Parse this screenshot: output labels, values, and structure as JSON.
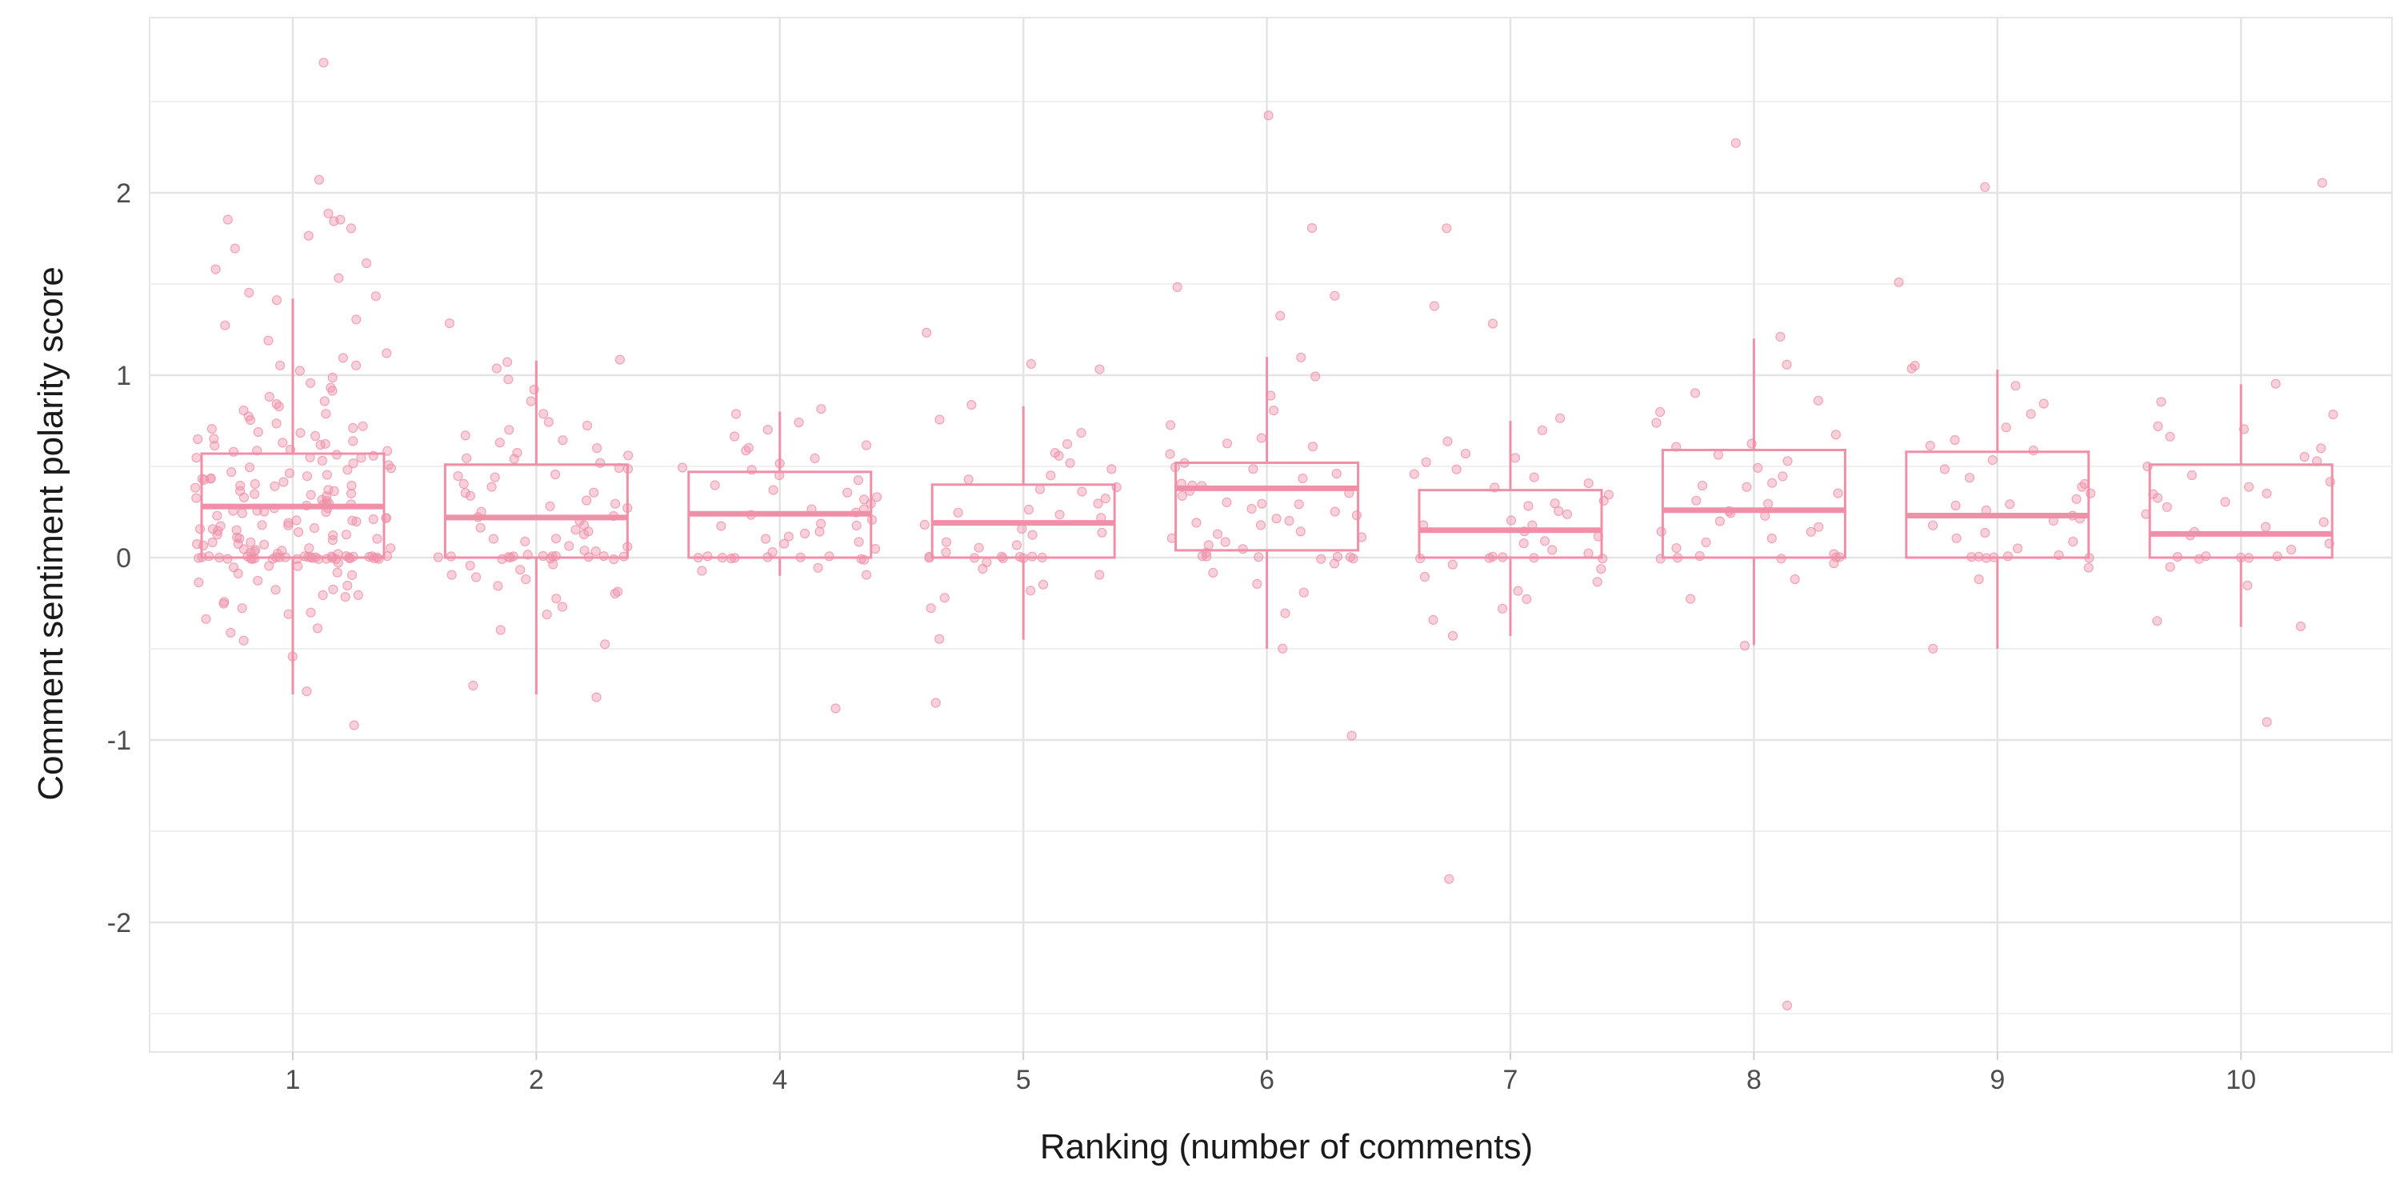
{
  "chart_data": {
    "type": "boxplot",
    "xlabel": "Ranking (number of comments)",
    "ylabel": "Comment sentiment polarity score",
    "categories": [
      "1",
      "2",
      "4",
      "5",
      "6",
      "7",
      "8",
      "9",
      "10"
    ],
    "ylim": [
      -2.7,
      2.7
    ],
    "yticks": [
      -2,
      -1,
      0,
      1,
      2
    ],
    "grid": true,
    "color": "#ef8fa8",
    "boxes": [
      {
        "category": "1",
        "whisker_low": -0.75,
        "q1": 0.0,
        "median": 0.28,
        "q3": 0.57,
        "whisker_high": 1.42
      },
      {
        "category": "2",
        "whisker_low": -0.75,
        "q1": 0.0,
        "median": 0.22,
        "q3": 0.51,
        "whisker_high": 1.08
      },
      {
        "category": "4",
        "whisker_low": -0.1,
        "q1": 0.0,
        "median": 0.24,
        "q3": 0.47,
        "whisker_high": 0.8
      },
      {
        "category": "5",
        "whisker_low": -0.45,
        "q1": 0.0,
        "median": 0.19,
        "q3": 0.4,
        "whisker_high": 0.83
      },
      {
        "category": "6",
        "whisker_low": -0.5,
        "q1": 0.04,
        "median": 0.38,
        "q3": 0.52,
        "whisker_high": 1.1
      },
      {
        "category": "7",
        "whisker_low": -0.43,
        "q1": 0.0,
        "median": 0.15,
        "q3": 0.37,
        "whisker_high": 0.75
      },
      {
        "category": "8",
        "whisker_low": -0.48,
        "q1": 0.0,
        "median": 0.26,
        "q3": 0.59,
        "whisker_high": 1.2
      },
      {
        "category": "9",
        "whisker_low": -0.5,
        "q1": 0.0,
        "median": 0.23,
        "q3": 0.58,
        "whisker_high": 1.03
      },
      {
        "category": "10",
        "whisker_low": -0.38,
        "q1": 0.0,
        "median": 0.13,
        "q3": 0.51,
        "whisker_high": 0.95
      }
    ],
    "points": {
      "1": [
        2.71,
        2.08,
        1.89,
        1.86,
        1.85,
        1.85,
        1.8,
        1.76,
        1.7,
        1.62,
        1.58,
        1.53,
        1.45,
        1.44,
        1.41,
        1.3,
        1.27,
        1.19,
        1.12,
        1.09,
        1.06,
        1.05,
        1.03,
        0.98,
        0.95,
        0.93,
        0.91,
        0.88,
        0.85,
        0.82,
        0.8,
        0.78,
        0.75,
        0.73,
        0.71,
        0.69,
        0.67,
        0.65,
        0.63,
        0.62,
        0.6,
        0.58,
        0.56,
        0.55,
        0.53,
        0.52,
        0.5,
        0.49,
        0.47,
        0.46,
        0.45,
        0.44,
        0.43,
        0.42,
        0.41,
        0.4,
        0.39,
        0.38,
        0.37,
        0.36,
        0.35,
        0.34,
        0.33,
        0.32,
        0.31,
        0.3,
        0.29,
        0.28,
        0.27,
        0.26,
        0.25,
        0.24,
        0.23,
        0.22,
        0.21,
        0.2,
        0.19,
        0.18,
        0.17,
        0.16,
        0.15,
        0.14,
        0.13,
        0.12,
        0.11,
        0.1,
        0.09,
        0.08,
        0.07,
        0.06,
        0.05,
        0.04,
        0.03,
        0.02,
        0.01,
        0.0,
        0.0,
        0.0,
        0.0,
        0.0,
        0.0,
        0.0,
        0.0,
        0.0,
        0.0,
        0.0,
        0.0,
        0.0,
        0.0,
        0.0,
        0.0,
        0.0,
        0.0,
        0.0,
        0.0,
        0.0,
        0.0,
        0.0,
        0.0,
        0.0,
        0.0,
        -0.02,
        -0.04,
        -0.06,
        -0.08,
        -0.1,
        -0.12,
        -0.15,
        -0.18,
        -0.2,
        -0.22,
        -0.25,
        -0.28,
        -0.31,
        -0.34,
        -0.38,
        -0.42,
        -0.45,
        -0.54,
        -0.74,
        -0.92,
        0.62,
        0.58,
        0.55,
        0.48,
        0.44,
        0.4,
        0.36,
        0.3,
        0.27,
        0.22,
        0.18,
        0.14,
        0.1,
        0.08,
        0.06,
        0.72,
        0.68,
        0.66,
        0.64,
        0.59,
        0.57,
        0.51,
        0.33,
        0.29,
        0.25,
        0.21,
        0.16,
        0.12,
        0.05,
        0.03,
        0.0,
        0.0,
        0.0,
        -0.05,
        -0.09,
        -0.13,
        -0.17,
        -0.21,
        -0.26,
        -0.3,
        0.85,
        0.77,
        0.7,
        0.61,
        0.54,
        0.47,
        0.43,
        0.37,
        0.32,
        0.26,
        0.2,
        0.15,
        0.11,
        0.07,
        0.04,
        0.02,
        0.0,
        0.0,
        0.0,
        0.0
      ],
      "2": [
        1.28,
        1.09,
        1.08,
        1.03,
        0.98,
        0.92,
        0.86,
        0.78,
        0.75,
        0.73,
        0.7,
        0.67,
        0.63,
        0.6,
        0.58,
        0.56,
        0.54,
        0.52,
        0.5,
        0.48,
        0.46,
        0.44,
        0.41,
        0.38,
        0.36,
        0.33,
        0.31,
        0.29,
        0.27,
        0.25,
        0.22,
        0.2,
        0.18,
        0.16,
        0.14,
        0.12,
        0.1,
        0.08,
        0.06,
        0.04,
        0.02,
        0.0,
        0.0,
        0.0,
        0.0,
        0.0,
        0.0,
        0.0,
        0.0,
        0.0,
        0.0,
        0.0,
        0.0,
        -0.03,
        -0.06,
        -0.09,
        -0.12,
        -0.15,
        -0.19,
        -0.23,
        -0.27,
        -0.32,
        -0.4,
        -0.48,
        -0.7,
        -0.76,
        0.65,
        0.55,
        0.45,
        0.35,
        0.28,
        0.23,
        0.17,
        0.11,
        0.07,
        0.03,
        0.0,
        0.0,
        -0.05,
        -0.11,
        -0.2
      ],
      "4": [
        0.81,
        0.79,
        0.74,
        0.7,
        0.66,
        0.62,
        0.58,
        0.55,
        0.52,
        0.49,
        0.46,
        0.43,
        0.4,
        0.37,
        0.34,
        0.31,
        0.29,
        0.27,
        0.25,
        0.23,
        0.21,
        0.19,
        0.17,
        0.15,
        0.13,
        0.11,
        0.09,
        0.07,
        0.05,
        0.03,
        0.01,
        0.0,
        0.0,
        0.0,
        0.0,
        0.0,
        0.0,
        0.0,
        0.0,
        -0.02,
        -0.05,
        -0.07,
        -0.09,
        -0.83,
        0.6,
        0.48,
        0.35,
        0.26,
        0.18,
        0.12
      ],
      "5": [
        1.07,
        1.03,
        0.83,
        0.75,
        0.68,
        0.62,
        0.57,
        0.52,
        0.48,
        0.45,
        0.42,
        0.39,
        0.36,
        0.33,
        0.3,
        0.27,
        0.24,
        0.21,
        0.18,
        0.15,
        0.12,
        0.09,
        0.06,
        0.03,
        0.0,
        0.0,
        0.0,
        0.0,
        0.0,
        0.0,
        0.0,
        0.0,
        -0.03,
        -0.06,
        -0.1,
        -0.14,
        -0.18,
        -0.22,
        -0.27,
        -0.45,
        -0.79,
        1.23,
        0.55,
        0.38,
        0.25,
        0.13,
        0.07,
        0.0
      ],
      "6": [
        2.43,
        1.8,
        1.48,
        1.43,
        1.33,
        1.1,
        1.0,
        0.88,
        0.8,
        0.72,
        0.65,
        0.6,
        0.56,
        0.52,
        0.49,
        0.46,
        0.43,
        0.41,
        0.39,
        0.37,
        0.35,
        0.33,
        0.31,
        0.29,
        0.27,
        0.25,
        0.23,
        0.21,
        0.19,
        0.17,
        0.15,
        0.13,
        0.11,
        0.09,
        0.07,
        0.05,
        0.03,
        0.0,
        0.0,
        0.0,
        0.0,
        0.0,
        0.0,
        0.0,
        -0.03,
        -0.08,
        -0.14,
        -0.2,
        -0.3,
        -0.5,
        -0.98,
        0.62,
        0.5,
        0.4,
        0.3,
        0.2,
        0.1
      ],
      "7": [
        1.8,
        1.38,
        1.28,
        0.76,
        0.7,
        0.63,
        0.57,
        0.53,
        0.49,
        0.45,
        0.41,
        0.38,
        0.35,
        0.32,
        0.29,
        0.26,
        0.23,
        0.2,
        0.17,
        0.14,
        0.11,
        0.08,
        0.05,
        0.02,
        0.0,
        0.0,
        0.0,
        0.0,
        0.0,
        0.0,
        -0.03,
        -0.06,
        -0.1,
        -0.14,
        -0.18,
        -0.23,
        -0.28,
        -0.35,
        -0.42,
        -1.76,
        0.55,
        0.44,
        0.3,
        0.18,
        0.09
      ],
      "8": [
        2.28,
        1.21,
        1.05,
        0.9,
        0.86,
        0.8,
        0.74,
        0.68,
        0.62,
        0.57,
        0.53,
        0.49,
        0.45,
        0.41,
        0.38,
        0.35,
        0.32,
        0.29,
        0.26,
        0.23,
        0.2,
        0.17,
        0.14,
        0.11,
        0.08,
        0.05,
        0.02,
        0.0,
        0.0,
        0.0,
        0.0,
        0.0,
        0.0,
        -0.03,
        -0.12,
        -0.22,
        -0.48,
        -2.46,
        0.6,
        0.4,
        0.25,
        0.15
      ],
      "9": [
        2.03,
        1.51,
        1.05,
        1.03,
        0.95,
        0.84,
        0.78,
        0.72,
        0.65,
        0.58,
        0.53,
        0.48,
        0.44,
        0.4,
        0.36,
        0.32,
        0.29,
        0.26,
        0.23,
        0.2,
        0.17,
        0.14,
        0.11,
        0.08,
        0.05,
        0.02,
        0.0,
        0.0,
        0.0,
        0.0,
        0.0,
        0.0,
        -0.05,
        -0.12,
        -0.5,
        0.62,
        0.38,
        0.3,
        0.21
      ],
      "10": [
        2.06,
        0.95,
        0.85,
        0.78,
        0.72,
        0.66,
        0.6,
        0.55,
        0.5,
        0.46,
        0.42,
        0.38,
        0.34,
        0.32,
        0.31,
        0.28,
        0.24,
        0.2,
        0.16,
        0.12,
        0.08,
        0.04,
        0.0,
        0.0,
        0.0,
        0.0,
        0.0,
        0.0,
        -0.05,
        -0.15,
        -0.34,
        -0.38,
        -0.91,
        0.7,
        0.52,
        0.36,
        0.14
      ]
    }
  }
}
